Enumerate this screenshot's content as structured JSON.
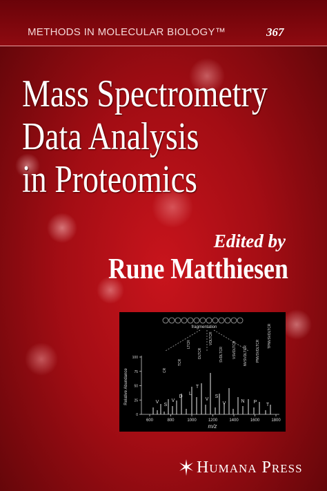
{
  "series": {
    "name": "METHODS IN MOLECULAR BIOLOGY™",
    "volume": "367"
  },
  "title": [
    "Mass Spectrometry",
    "Data Analysis",
    "in Proteomics"
  ],
  "editor_label": "Edited by",
  "editor": "Rune Matthiesen",
  "figure": {
    "caption": "fragmentation",
    "y_label": "Relative Abundance",
    "x_label": "m/z",
    "yticks": [
      0,
      25,
      50,
      75,
      100
    ],
    "xticks": [
      600,
      800,
      1000,
      1200,
      1400,
      1600,
      1800
    ],
    "peak_labels": [
      "CR",
      "TCR",
      "LTCR",
      "DLTCR",
      "VDLTCR",
      "SVDLTCR",
      "VSVDLTCR",
      "NVSVDLTCR",
      "PNVSVDLTCR",
      "TPNVSVDLTCR"
    ],
    "residues": [
      "V",
      "S",
      "V",
      "D",
      "L",
      "T",
      "V",
      "S",
      "V",
      "N",
      "P",
      "T"
    ]
  },
  "publisher": "Humana Press"
}
